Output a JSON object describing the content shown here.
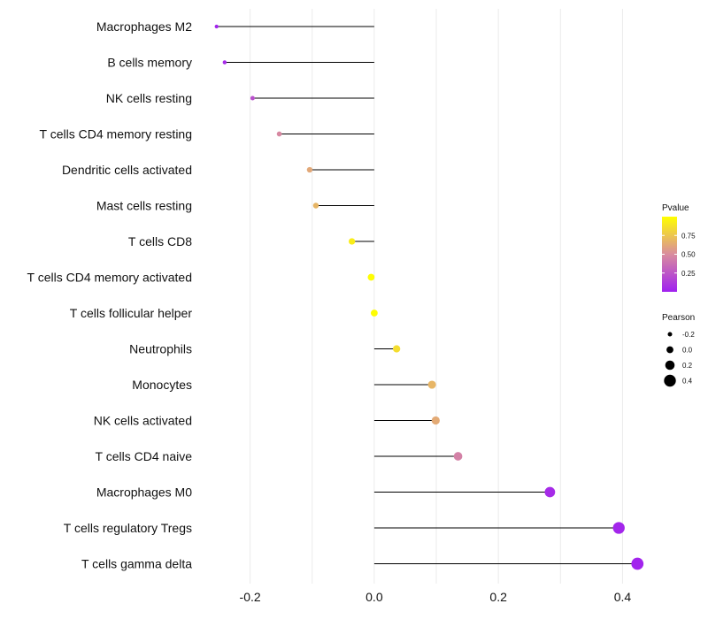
{
  "chart_data": {
    "type": "lollipop",
    "title": "",
    "xlabel": "",
    "ylabel": "",
    "xlim": [
      -0.275,
      0.445
    ],
    "x_ticks": [
      -0.2,
      0.0,
      0.2,
      0.4
    ],
    "x_tick_labels": [
      "-0.2",
      "0.0",
      "0.2",
      "0.4"
    ],
    "grid": true,
    "categories": [
      "Macrophages M2",
      "B cells memory",
      "NK cells resting",
      "T cells CD4 memory resting",
      "Dendritic cells activated",
      "Mast cells resting",
      "T cells CD8",
      "T cells CD4 memory activated",
      "T cells follicular helper",
      "Neutrophils",
      "Monocytes",
      "NK cells activated",
      "T cells CD4 naive",
      "Macrophages M0",
      "T cells regulatory  Tregs",
      "T cells gamma delta"
    ],
    "values": [
      -0.254,
      -0.241,
      -0.196,
      -0.153,
      -0.104,
      -0.094,
      -0.036,
      -0.005,
      0.0,
      0.036,
      0.093,
      0.099,
      0.135,
      0.283,
      0.394,
      0.424
    ],
    "pvalues": [
      0.02,
      0.05,
      0.22,
      0.48,
      0.62,
      0.68,
      0.92,
      0.99,
      0.99,
      0.85,
      0.68,
      0.63,
      0.45,
      0.05,
      0.03,
      0.02
    ],
    "legend": {
      "color": {
        "title": "Pvalue",
        "ticks": [
          0.25,
          0.5,
          0.75
        ],
        "tick_labels": [
          "0.25",
          "0.50",
          "0.75"
        ],
        "range": [
          0.0,
          1.0
        ],
        "low_color": "#a020f0",
        "mid_color": "#d98c9e",
        "high_color": "#ffff00"
      },
      "size": {
        "title": "Pearson",
        "values": [
          -0.2,
          0.0,
          0.2,
          0.4
        ],
        "labels": [
          "-0.2",
          "0.0",
          "0.2",
          "0.4"
        ]
      },
      "position": "right"
    },
    "colors": {
      "stem": "#000000",
      "grid": "#ebebeb"
    }
  }
}
